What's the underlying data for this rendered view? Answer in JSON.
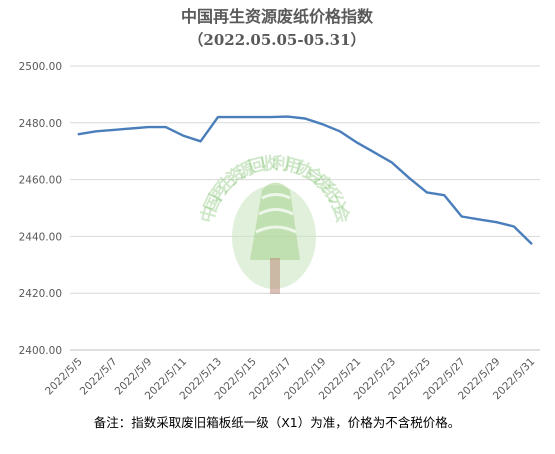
{
  "chart_data": {
    "type": "line",
    "title": "中国再生资源废纸价格指数",
    "subtitle": "（2022.05.05-05.31）",
    "x": [
      "2022/5/5",
      "2022/5/6",
      "2022/5/7",
      "2022/5/8",
      "2022/5/9",
      "2022/5/10",
      "2022/5/11",
      "2022/5/12",
      "2022/5/13",
      "2022/5/14",
      "2022/5/15",
      "2022/5/16",
      "2022/5/17",
      "2022/5/18",
      "2022/5/19",
      "2022/5/20",
      "2022/5/21",
      "2022/5/22",
      "2022/5/23",
      "2022/5/24",
      "2022/5/25",
      "2022/5/26",
      "2022/5/27",
      "2022/5/28",
      "2022/5/29",
      "2022/5/30",
      "2022/5/31"
    ],
    "xtick_labels": [
      "2022/5/5",
      "2022/5/7",
      "2022/5/9",
      "2022/5/11",
      "2022/5/13",
      "2022/5/15",
      "2022/5/17",
      "2022/5/19",
      "2022/5/21",
      "2022/5/23",
      "2022/5/25",
      "2022/5/27",
      "2022/5/29",
      "2022/5/31"
    ],
    "values": [
      2476,
      2477,
      2477.5,
      2478,
      2478.5,
      2478.5,
      2475.5,
      2473.5,
      2482,
      2482,
      2482,
      2482,
      2482.2,
      2481.5,
      2479.5,
      2477,
      2473,
      2469.5,
      2466,
      2460.5,
      2455.5,
      2454.5,
      2447,
      2446,
      2445,
      2443.5,
      2437.5
    ],
    "ylim": [
      2400,
      2500
    ],
    "ytick_labels": [
      "2500.00",
      "2480.00",
      "2460.00",
      "2440.00",
      "2420.00",
      "2400.00"
    ],
    "xlabel": "",
    "ylabel": "",
    "grid": true,
    "line_color": "#4a7ebb",
    "note": "备注：指数采取废旧箱板纸一级（X1）为准，价格为不含税价格。",
    "watermark": "中国再生资源回收利用协会废纸分会"
  }
}
